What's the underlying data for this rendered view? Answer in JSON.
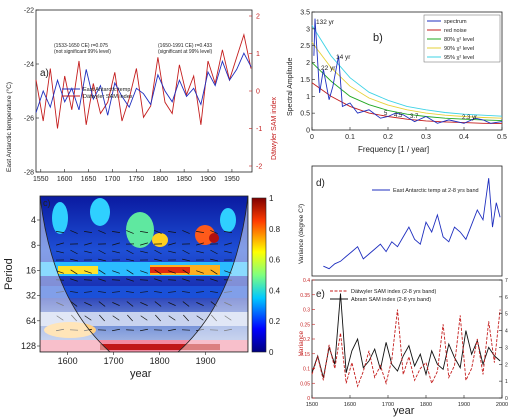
{
  "colors": {
    "blue": "#1f2fbf",
    "red": "#c41e1e",
    "black": "#111111",
    "green": "#22a822",
    "cyan": "#3fd3e6",
    "yellow": "#e6d23a",
    "pink": "#e64a8c",
    "grey": "#9a9a9a"
  },
  "chart_data": [
    {
      "id": "a",
      "type": "line",
      "panel_label": "a)",
      "xlabel": "",
      "ylabel": "East Antarctic temperature (°C)",
      "y2label": "Dätwyler SAM index",
      "xlim": [
        1540,
        1992
      ],
      "ylim": [
        -28,
        -22
      ],
      "y2lim": [
        -2,
        2
      ],
      "x_ticks": [
        "1550",
        "1600",
        "1650",
        "1700",
        "1750",
        "1800",
        "1850",
        "1900",
        "1950"
      ],
      "y_ticks": [
        "-28",
        "-26",
        "-24",
        "-22"
      ],
      "y2_ticks": [
        "-2",
        "-1",
        "0",
        "1",
        "2"
      ],
      "annotations": [
        "(1533-1650 CE) r=0.075",
        "(not significant 99% level)",
        "(1650-1991 CE) r=0.433",
        "(significant at 99% level)"
      ],
      "legend": [
        "East Antarctic temp.",
        "Dätwyler SAM index"
      ],
      "series": [
        {
          "name": "East Antarctic temp.",
          "axis": "left",
          "x": [
            1540,
            1555,
            1570,
            1585,
            1600,
            1615,
            1630,
            1645,
            1660,
            1675,
            1690,
            1705,
            1720,
            1735,
            1750,
            1765,
            1780,
            1795,
            1810,
            1825,
            1840,
            1855,
            1870,
            1885,
            1900,
            1915,
            1930,
            1945,
            1960,
            1975,
            1990
          ],
          "values": [
            -25.8,
            -25.0,
            -25.6,
            -24.6,
            -25.4,
            -24.9,
            -25.7,
            -24.2,
            -25.3,
            -24.8,
            -25.9,
            -24.7,
            -25.2,
            -25.6,
            -24.9,
            -25.1,
            -25.5,
            -24.4,
            -25.0,
            -25.4,
            -24.6,
            -25.2,
            -24.9,
            -25.5,
            -24.3,
            -24.8,
            -23.9,
            -24.6,
            -24.2,
            -23.6,
            -24.1
          ]
        },
        {
          "name": "Dätwyler SAM index",
          "axis": "right",
          "x": [
            1540,
            1555,
            1570,
            1585,
            1600,
            1615,
            1630,
            1645,
            1660,
            1675,
            1690,
            1705,
            1720,
            1735,
            1750,
            1765,
            1780,
            1795,
            1810,
            1825,
            1840,
            1855,
            1870,
            1885,
            1900,
            1915,
            1930,
            1945,
            1960,
            1975,
            1990
          ],
          "values": [
            0.3,
            -0.8,
            0.6,
            -1.0,
            0.4,
            -0.5,
            0.8,
            -0.9,
            0.2,
            -0.6,
            -0.3,
            0.5,
            -0.8,
            -0.2,
            0.6,
            -0.7,
            -0.4,
            0.9,
            -0.3,
            -0.6,
            0.7,
            -0.1,
            0.4,
            -0.9,
            0.8,
            0.2,
            1.1,
            0.3,
            0.9,
            1.5,
            0.6
          ]
        }
      ]
    },
    {
      "id": "b",
      "type": "line",
      "panel_label": "b)",
      "xlabel": "Frequency [1 / year]",
      "ylabel": "Spectral Amplitude",
      "xlim": [
        0,
        0.5
      ],
      "ylim": [
        0,
        3.5
      ],
      "x_ticks": [
        "0",
        "0.1",
        "0.2",
        "0.3",
        "0.4",
        "0.5"
      ],
      "y_ticks": [
        "0",
        "0.5",
        "1",
        "1.5",
        "2",
        "2.5",
        "3",
        "3.5"
      ],
      "legend": [
        "spectrum",
        "red noise",
        "80% χ² level",
        "90% χ² level",
        "95% χ² level"
      ],
      "peak_labels": [
        "132 yr",
        "22 yr",
        "14 yr",
        "5",
        "4.5",
        "3.7",
        "2.3 yr"
      ],
      "spectrum": {
        "x": [
          0.005,
          0.008,
          0.02,
          0.03,
          0.045,
          0.055,
          0.07,
          0.08,
          0.1,
          0.12,
          0.15,
          0.18,
          0.2,
          0.22,
          0.24,
          0.27,
          0.3,
          0.33,
          0.36,
          0.4,
          0.43,
          0.45,
          0.47,
          0.5
        ],
        "values": [
          2.2,
          3.3,
          1.1,
          1.8,
          0.9,
          1.3,
          2.2,
          0.7,
          0.8,
          0.5,
          0.6,
          0.35,
          0.4,
          0.5,
          0.45,
          0.25,
          0.4,
          0.2,
          0.3,
          0.2,
          0.35,
          0.3,
          0.2,
          0.25
        ]
      },
      "red_noise": {
        "x": [
          0,
          0.05,
          0.1,
          0.15,
          0.2,
          0.25,
          0.3,
          0.35,
          0.4,
          0.45,
          0.5
        ],
        "values": [
          1.4,
          1.0,
          0.7,
          0.5,
          0.4,
          0.32,
          0.27,
          0.24,
          0.22,
          0.2,
          0.19
        ]
      },
      "chi80": {
        "x": [
          0,
          0.05,
          0.1,
          0.15,
          0.2,
          0.25,
          0.3,
          0.35,
          0.4,
          0.45,
          0.5
        ],
        "values": [
          2.0,
          1.45,
          1.0,
          0.75,
          0.58,
          0.47,
          0.4,
          0.35,
          0.32,
          0.3,
          0.28
        ]
      },
      "chi90": {
        "x": [
          0,
          0.05,
          0.1,
          0.15,
          0.2,
          0.25,
          0.3,
          0.35,
          0.4,
          0.45,
          0.5
        ],
        "values": [
          2.6,
          1.85,
          1.3,
          0.95,
          0.74,
          0.6,
          0.5,
          0.44,
          0.4,
          0.37,
          0.35
        ]
      },
      "chi95": {
        "x": [
          0,
          0.05,
          0.1,
          0.15,
          0.2,
          0.25,
          0.3,
          0.35,
          0.4,
          0.45,
          0.5
        ],
        "values": [
          3.1,
          2.2,
          1.55,
          1.12,
          0.88,
          0.7,
          0.6,
          0.52,
          0.47,
          0.44,
          0.41
        ]
      }
    },
    {
      "id": "c",
      "type": "heatmap",
      "panel_label": "c)",
      "xlabel": "year",
      "ylabel": "Period",
      "xlim": [
        1540,
        1992
      ],
      "x_ticks": [
        "1600",
        "1700",
        "1800",
        "1900"
      ],
      "y_ticks": [
        "4",
        "8",
        "16",
        "32",
        "64",
        "128"
      ],
      "colorbar_ticks": [
        "0",
        "0.2",
        "0.4",
        "0.6",
        "0.8",
        "1"
      ]
    },
    {
      "id": "d",
      "type": "line",
      "panel_label": "d)",
      "xlabel": "",
      "ylabel": "Variance (degree C²)",
      "legend": [
        "East Antarctic temp at 2-8 yrs band"
      ],
      "xlim": [
        1500,
        2000
      ],
      "series": [
        {
          "name": "East Antarctic temp at 2-8 yrs band",
          "x": [
            1530,
            1545,
            1560,
            1575,
            1590,
            1605,
            1620,
            1635,
            1650,
            1665,
            1680,
            1695,
            1710,
            1725,
            1740,
            1755,
            1770,
            1785,
            1800,
            1815,
            1830,
            1845,
            1860,
            1875,
            1890,
            1905,
            1920,
            1935,
            1950,
            1965,
            1975,
            1985,
            1995
          ],
          "values": [
            0.04,
            0.03,
            0.05,
            0.06,
            0.08,
            0.1,
            0.12,
            0.07,
            0.09,
            0.11,
            0.13,
            0.1,
            0.14,
            0.12,
            0.16,
            0.2,
            0.15,
            0.13,
            0.22,
            0.18,
            0.25,
            0.16,
            0.14,
            0.2,
            0.18,
            0.15,
            0.21,
            0.27,
            0.23,
            0.4,
            0.2,
            0.3,
            0.24
          ]
        }
      ]
    },
    {
      "id": "e",
      "type": "line",
      "panel_label": "e)",
      "xlabel": "year",
      "ylabel": "Variance",
      "legend": [
        "Dätwyler SAM index (2-8 yrs band)",
        "Abram SAM index (2-8 yrs band)"
      ],
      "xlim": [
        1500,
        2000
      ],
      "x_ticks": [
        "1500",
        "1600",
        "1700",
        "1800",
        "1900",
        "2000"
      ],
      "y_ticks": [
        "0",
        "0.05",
        "0.1",
        "0.15",
        "0.2",
        "0.25",
        "0.3",
        "0.35",
        "0.4"
      ],
      "y2_ticks": [
        "0",
        "1",
        "2",
        "3",
        "4",
        "5",
        "6",
        "7"
      ],
      "series": [
        {
          "name": "Dätwyler SAM index (2-8 yrs band)",
          "axis": "left",
          "x": [
            1500,
            1515,
            1530,
            1545,
            1560,
            1575,
            1590,
            1605,
            1620,
            1635,
            1650,
            1665,
            1680,
            1695,
            1710,
            1725,
            1740,
            1755,
            1770,
            1785,
            1800,
            1815,
            1830,
            1845,
            1860,
            1875,
            1890,
            1905,
            1920,
            1935,
            1950,
            1965,
            1980,
            1995
          ],
          "values": [
            0.08,
            0.14,
            0.06,
            0.18,
            0.1,
            0.22,
            0.05,
            0.12,
            0.04,
            0.09,
            0.16,
            0.07,
            0.11,
            0.05,
            0.13,
            0.3,
            0.08,
            0.14,
            0.06,
            0.1,
            0.12,
            0.05,
            0.09,
            0.25,
            0.07,
            0.11,
            0.28,
            0.06,
            0.1,
            0.2,
            0.08,
            0.26,
            0.12,
            0.3
          ]
        },
        {
          "name": "Abram SAM index (2-8 yrs band)",
          "axis": "right",
          "x": [
            1500,
            1515,
            1530,
            1545,
            1560,
            1575,
            1590,
            1605,
            1620,
            1635,
            1650,
            1665,
            1680,
            1695,
            1710,
            1725,
            1740,
            1755,
            1770,
            1785,
            1800,
            1815,
            1830,
            1845,
            1860,
            1875,
            1890,
            1905,
            1920,
            1935,
            1950,
            1965,
            1980,
            1995
          ],
          "values": [
            1.5,
            2.5,
            1.2,
            3.0,
            2.0,
            6.2,
            1.5,
            2.8,
            3.5,
            1.8,
            2.2,
            2.9,
            1.7,
            3.3,
            2.0,
            1.6,
            2.5,
            3.1,
            1.9,
            2.6,
            1.4,
            2.8,
            2.0,
            1.7,
            3.2,
            2.4,
            1.8,
            4.0,
            2.6,
            3.4,
            2.0,
            3.0,
            2.5,
            2.2
          ]
        }
      ]
    }
  ]
}
